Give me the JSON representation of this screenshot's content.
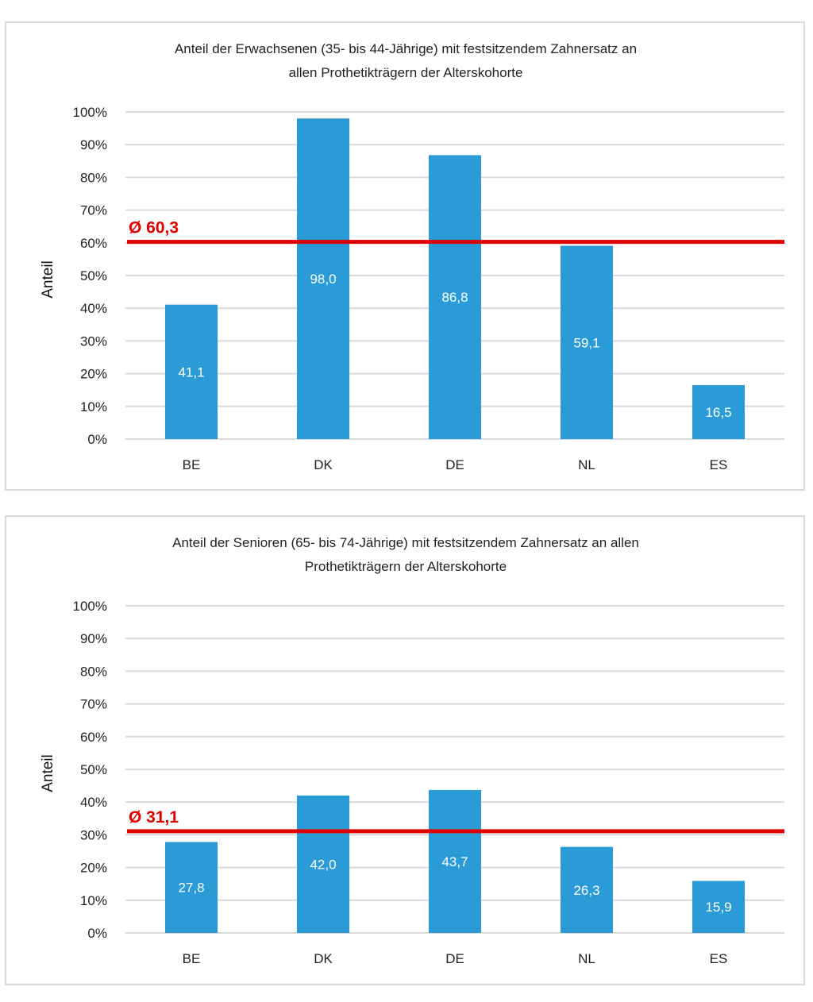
{
  "colors": {
    "bar": "#2a9bd7",
    "average_line": "#e00000",
    "grid": "#d9d9d9",
    "border": "#d9d9d9"
  },
  "chart_data": [
    {
      "type": "bar",
      "title": "Anteil der Erwachsenen (35- bis 44-Jährige) mit festsitzendem Zahnersatz an allen Prothetikträgern der Alterskohorte",
      "title_lines": [
        "Anteil der Erwachsenen (35- bis 44-Jährige) mit festsitzendem Zahnersatz an",
        "allen Prothetikträgern der Alterskohorte"
      ],
      "xlabel": "",
      "ylabel": "Anteil",
      "categories": [
        "BE",
        "DK",
        "DE",
        "NL",
        "ES"
      ],
      "values": [
        41.1,
        98.0,
        86.8,
        59.1,
        16.5
      ],
      "value_labels": [
        "41,1",
        "98,0",
        "86,8",
        "59,1",
        "16,5"
      ],
      "ylim": [
        0,
        100
      ],
      "yticks": [
        "0%",
        "10%",
        "20%",
        "30%",
        "40%",
        "50%",
        "60%",
        "70%",
        "80%",
        "90%",
        "100%"
      ],
      "grid": true,
      "average": {
        "value": 60.3,
        "label": "Ø 60,3"
      }
    },
    {
      "type": "bar",
      "title": "Anteil der Senioren (65- bis 74-Jährige) mit festsitzendem Zahnersatz an allen Prothetikträgern der Alterskohorte",
      "title_lines": [
        "Anteil der Senioren (65- bis 74-Jährige) mit festsitzendem Zahnersatz an allen",
        "Prothetikträgern der Alterskohorte"
      ],
      "xlabel": "",
      "ylabel": "Anteil",
      "categories": [
        "BE",
        "DK",
        "DE",
        "NL",
        "ES"
      ],
      "values": [
        27.8,
        42.0,
        43.7,
        26.3,
        15.9
      ],
      "value_labels": [
        "27,8",
        "42,0",
        "43,7",
        "26,3",
        "15,9"
      ],
      "ylim": [
        0,
        100
      ],
      "yticks": [
        "0%",
        "10%",
        "20%",
        "30%",
        "40%",
        "50%",
        "60%",
        "70%",
        "80%",
        "90%",
        "100%"
      ],
      "grid": true,
      "average": {
        "value": 31.1,
        "label": "Ø 31,1"
      }
    }
  ]
}
